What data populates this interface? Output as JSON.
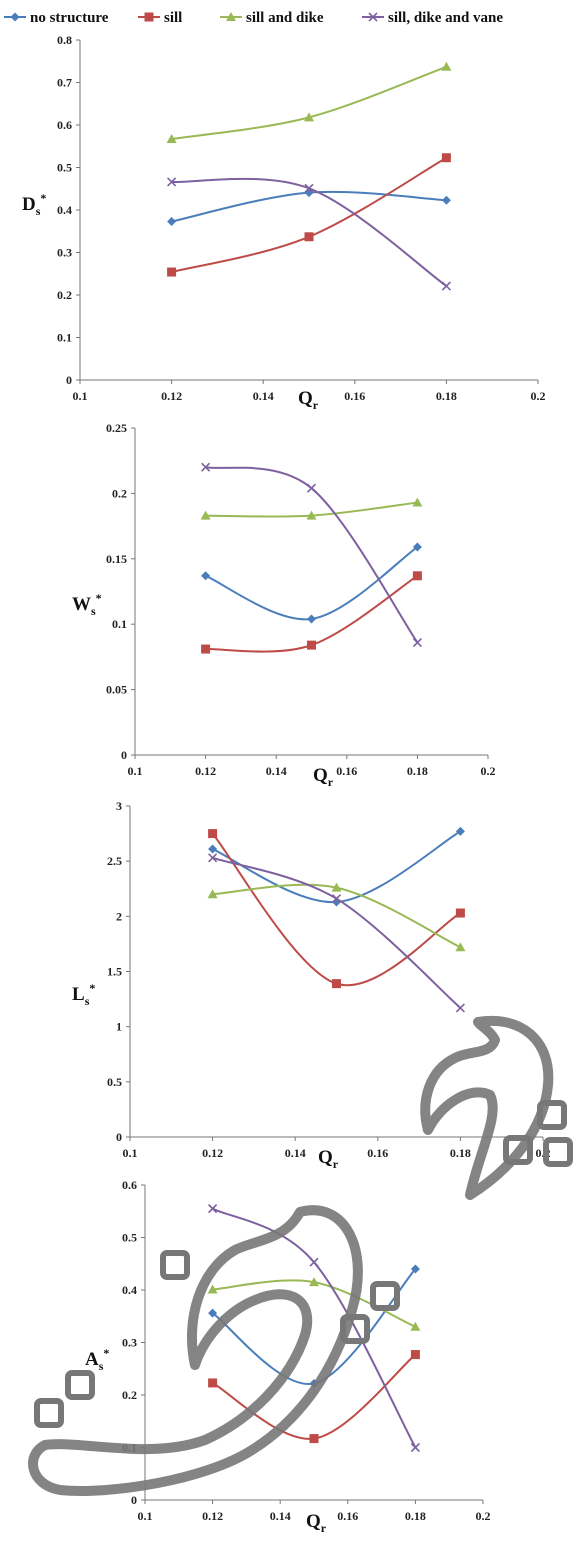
{
  "legend": [
    {
      "label": "no structure",
      "color": "#4a7ebb",
      "marker": "diamond"
    },
    {
      "label": "sill",
      "color": "#be4b48",
      "marker": "square"
    },
    {
      "label": "sill and dike",
      "color": "#98b954",
      "marker": "triangle"
    },
    {
      "label": "sill, dike and vane",
      "color": "#7d60a0",
      "marker": "x"
    }
  ],
  "chart_data": [
    {
      "type": "line",
      "ylabel": "Ds*",
      "xlabel": "Qr",
      "xlim": [
        0.1,
        0.2
      ],
      "ylim": [
        0,
        0.8
      ],
      "x_ticks": [
        "0.1",
        "0.12",
        "0.14",
        "0.16",
        "0.18",
        "0.2"
      ],
      "y_ticks": [
        "0",
        "0.1",
        "0.2",
        "0.3",
        "0.4",
        "0.5",
        "0.6",
        "0.7",
        "0.8"
      ],
      "x": [
        0.12,
        0.15,
        0.18
      ],
      "series": [
        {
          "name": "no structure",
          "values": [
            0.373,
            0.441,
            0.423
          ]
        },
        {
          "name": "sill",
          "values": [
            0.254,
            0.337,
            0.523
          ]
        },
        {
          "name": "sill and dike",
          "values": [
            0.567,
            0.618,
            0.737
          ]
        },
        {
          "name": "sill, dike and vane",
          "values": [
            0.466,
            0.451,
            0.221
          ]
        }
      ]
    },
    {
      "type": "line",
      "ylabel": "Ws*",
      "xlabel": "Qr",
      "xlim": [
        0.1,
        0.2
      ],
      "ylim": [
        0,
        0.25
      ],
      "x_ticks": [
        "0.1",
        "0.12",
        "0.14",
        "0.16",
        "0.18",
        "0.2"
      ],
      "y_ticks": [
        "0",
        "0.05",
        "0.1",
        "0.15",
        "0.2",
        "0.25"
      ],
      "x": [
        0.12,
        0.15,
        0.18
      ],
      "series": [
        {
          "name": "no structure",
          "values": [
            0.137,
            0.104,
            0.159
          ]
        },
        {
          "name": "sill",
          "values": [
            0.081,
            0.084,
            0.137
          ]
        },
        {
          "name": "sill and dike",
          "values": [
            0.183,
            0.183,
            0.193
          ]
        },
        {
          "name": "sill, dike and vane",
          "values": [
            0.22,
            0.204,
            0.086
          ]
        }
      ]
    },
    {
      "type": "line",
      "ylabel": "Ls*",
      "xlabel": "Qr",
      "xlim": [
        0.1,
        0.2
      ],
      "ylim": [
        0,
        3
      ],
      "x_ticks": [
        "0.1",
        "0.12",
        "0.14",
        "0.16",
        "0.18",
        "0.2"
      ],
      "y_ticks": [
        "0",
        "0.5",
        "1",
        "1.5",
        "2",
        "2.5",
        "3"
      ],
      "x": [
        0.12,
        0.15,
        0.18
      ],
      "series": [
        {
          "name": "no structure",
          "values": [
            2.61,
            2.13,
            2.77
          ]
        },
        {
          "name": "sill",
          "values": [
            2.75,
            1.39,
            2.03
          ]
        },
        {
          "name": "sill and dike",
          "values": [
            2.2,
            2.26,
            1.72
          ]
        },
        {
          "name": "sill, dike and vane",
          "values": [
            2.53,
            2.16,
            1.17
          ]
        }
      ]
    },
    {
      "type": "line",
      "ylabel": "As*",
      "xlabel": "Qr",
      "xlim": [
        0.1,
        0.2
      ],
      "ylim": [
        0,
        0.6
      ],
      "x_ticks": [
        "0.1",
        "0.12",
        "0.14",
        "0.16",
        "0.18",
        "0.2"
      ],
      "y_ticks": [
        "0",
        "0.1",
        "0.2",
        "0.3",
        "0.4",
        "0.5",
        "0.6"
      ],
      "x": [
        0.12,
        0.15,
        0.18
      ],
      "series": [
        {
          "name": "no structure",
          "values": [
            0.356,
            0.222,
            0.44
          ]
        },
        {
          "name": "sill",
          "values": [
            0.223,
            0.117,
            0.277
          ]
        },
        {
          "name": "sill and dike",
          "values": [
            0.401,
            0.415,
            0.33
          ]
        },
        {
          "name": "sill, dike and vane",
          "values": [
            0.555,
            0.453,
            0.1
          ]
        }
      ]
    }
  ]
}
